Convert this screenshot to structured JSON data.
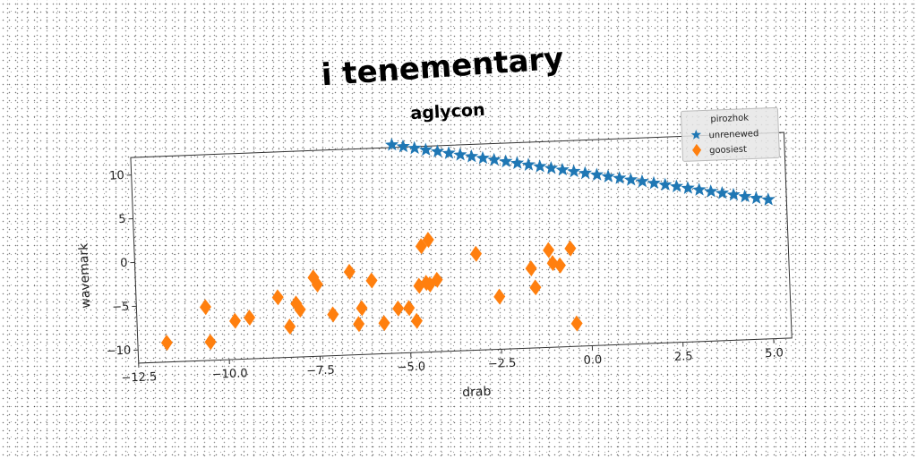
{
  "chart_data": {
    "type": "scatter",
    "title": "i tenementary",
    "subtitle": "aglycon",
    "xlabel": "drab",
    "ylabel": "wavemark",
    "xlim": [
      -12.5,
      5.5
    ],
    "ylim": [
      -11.5,
      12
    ],
    "xticks": [
      "−12.5",
      "−10.0",
      "−7.5",
      "−5.0",
      "−2.5",
      "0.0",
      "2.5",
      "5.0"
    ],
    "yticks": [
      "−10",
      "−5",
      "0",
      "5",
      "10"
    ],
    "grid": false,
    "legend": {
      "title": "pirozhok",
      "placement": "top-right"
    },
    "series": [
      {
        "name": "unrenewed",
        "marker": "star",
        "color": "#1f77b4",
        "x": [
          -5.3,
          -4.99,
          -4.68,
          -4.37,
          -4.05,
          -3.74,
          -3.43,
          -3.12,
          -2.81,
          -2.5,
          -2.18,
          -1.87,
          -1.56,
          -1.25,
          -0.94,
          -0.63,
          -0.32,
          -0.01,
          0.31,
          0.62,
          0.93,
          1.24,
          1.55,
          1.87,
          2.18,
          2.49,
          2.8,
          3.11,
          3.43,
          3.74,
          4.05,
          4.36,
          4.67,
          5.0
        ],
        "y": [
          12.3,
          12.06,
          11.82,
          11.58,
          11.34,
          11.1,
          10.86,
          10.62,
          10.38,
          10.14,
          9.9,
          9.66,
          9.42,
          9.18,
          8.94,
          8.7,
          8.46,
          8.22,
          7.98,
          7.74,
          7.5,
          7.26,
          7.02,
          6.78,
          6.54,
          6.3,
          6.06,
          5.82,
          5.58,
          5.34,
          5.1,
          4.86,
          4.62,
          4.4
        ]
      },
      {
        "name": "goosiest",
        "marker": "diamond",
        "color": "#ff7f0e",
        "x": [
          -11.7,
          -10.6,
          -10.5,
          -9.8,
          -9.4,
          -8.6,
          -8.3,
          -8.1,
          -8.0,
          -7.6,
          -7.5,
          -7.1,
          -6.6,
          -6.4,
          -6.3,
          -6.0,
          -5.7,
          -5.3,
          -5.0,
          -4.8,
          -4.7,
          -4.6,
          -4.5,
          -4.4,
          -4.4,
          -4.2,
          -3.1,
          -2.5,
          -1.6,
          -1.5,
          -1.1,
          -1.0,
          -0.8,
          -0.5,
          -0.4
        ],
        "y": [
          -9.3,
          -5.4,
          -9.4,
          -7.1,
          -6.8,
          -4.6,
          -8.0,
          -5.4,
          -6.1,
          -2.5,
          -3.3,
          -6.8,
          -2.0,
          -8.0,
          -6.2,
          -3.1,
          -8.0,
          -6.4,
          -6.4,
          -7.9,
          -3.9,
          0.6,
          -3.6,
          1.3,
          -3.8,
          -3.3,
          -0.5,
          -5.5,
          -2.4,
          -4.6,
          -0.4,
          -1.9,
          -2.2,
          -0.3,
          -8.9
        ]
      }
    ]
  }
}
